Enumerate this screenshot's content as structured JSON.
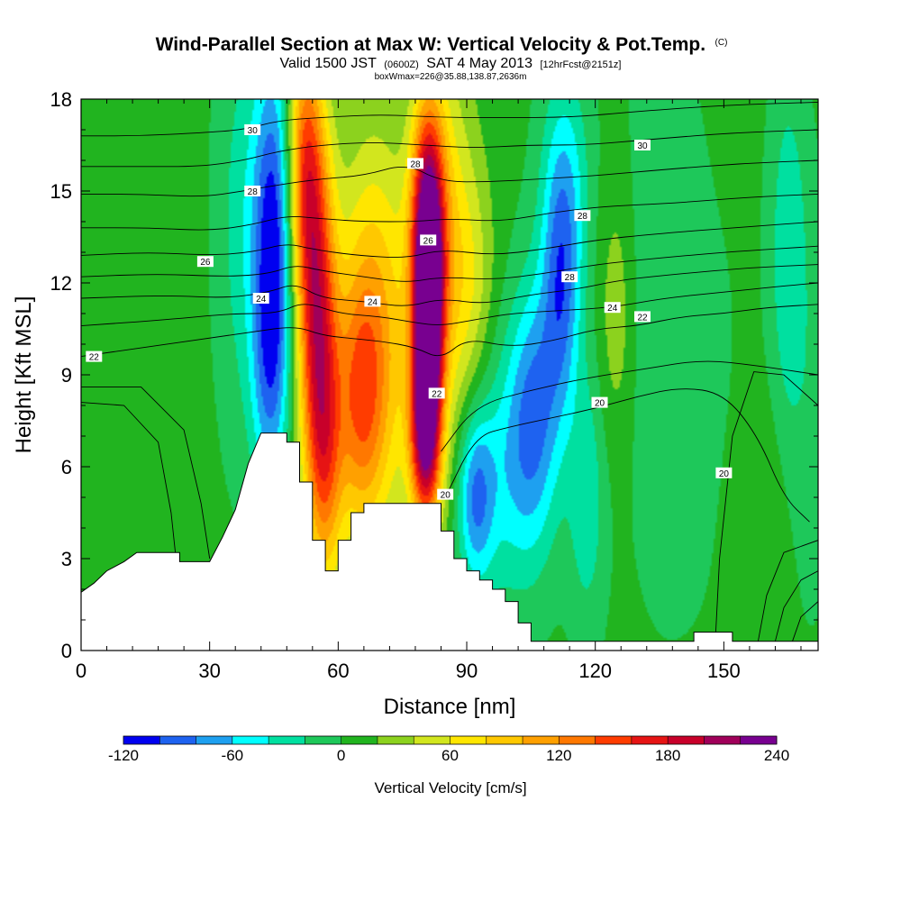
{
  "chart_data": {
    "type": "heatmap",
    "title": "Wind-Parallel Section at Max W: Vertical Velocity & Pot.Temp.",
    "title_suffix": "(C)",
    "subtitle": {
      "valid_prefix": "Valid 1500 JST",
      "utc": "(0600Z)",
      "date": "SAT 4 May 2013",
      "forecast": "[12hrFcst@2151z]"
    },
    "box_text": "boxWmax=226@35.88,138.87,2636m",
    "xlabel": "Distance [nm]",
    "ylabel": "Height [Kft MSL]",
    "xlim": [
      0,
      172
    ],
    "ylim": [
      0,
      18
    ],
    "x_ticks": [
      0,
      30,
      60,
      90,
      120,
      150
    ],
    "y_ticks": [
      0,
      3,
      6,
      9,
      12,
      15,
      18
    ],
    "colorbar": {
      "title": "Vertical Velocity [cm/s]",
      "min": -120,
      "max": 240,
      "step": 20,
      "tick_values": [
        -120,
        -60,
        0,
        60,
        120,
        180,
        240
      ],
      "colors": [
        "#0000f0",
        "#1e62f0",
        "#1ea0f0",
        "#00ffff",
        "#00e0a0",
        "#1ec85a",
        "#21b41f",
        "#8cd21e",
        "#d2e61e",
        "#ffe600",
        "#ffc800",
        "#ffa000",
        "#ff7800",
        "#ff3c00",
        "#e61414",
        "#c8002a",
        "#a0005a",
        "#780090"
      ]
    },
    "terrain_profile": [
      [
        0,
        1.9
      ],
      [
        3,
        2.2
      ],
      [
        6,
        2.6
      ],
      [
        10,
        2.9
      ],
      [
        13,
        3.2
      ],
      [
        23,
        3.2
      ],
      [
        23,
        2.9
      ],
      [
        30,
        2.9
      ],
      [
        33,
        3.7
      ],
      [
        36,
        4.6
      ],
      [
        39,
        6.1
      ],
      [
        42,
        7.1
      ],
      [
        48,
        7.1
      ],
      [
        48,
        6.8
      ],
      [
        51,
        6.8
      ],
      [
        51,
        5.5
      ],
      [
        54,
        5.5
      ],
      [
        54,
        3.6
      ],
      [
        57,
        3.6
      ],
      [
        57,
        2.6
      ],
      [
        60,
        2.6
      ],
      [
        60,
        3.6
      ],
      [
        63,
        3.6
      ],
      [
        63,
        4.5
      ],
      [
        66,
        4.5
      ],
      [
        66,
        4.8
      ],
      [
        84,
        4.8
      ],
      [
        84,
        3.9
      ],
      [
        87,
        3.9
      ],
      [
        87,
        3.0
      ],
      [
        90,
        3.0
      ],
      [
        90,
        2.6
      ],
      [
        93,
        2.6
      ],
      [
        93,
        2.3
      ],
      [
        96,
        2.3
      ],
      [
        96,
        2.0
      ],
      [
        99,
        2.0
      ],
      [
        99,
        1.6
      ],
      [
        102,
        1.6
      ],
      [
        102,
        0.9
      ],
      [
        105,
        0.9
      ],
      [
        105,
        0.3
      ],
      [
        143,
        0.3
      ],
      [
        143,
        0.6
      ],
      [
        152,
        0.6
      ],
      [
        152,
        0.3
      ],
      [
        172,
        0.3
      ]
    ],
    "w_field": [
      {
        "x": 5,
        "y": 10,
        "value": 5,
        "sx": 12,
        "sy": 10
      },
      {
        "x": 25,
        "y": 12,
        "value": 0,
        "sx": 12,
        "sy": 8
      },
      {
        "x": 37,
        "y": 14,
        "value": -30,
        "sx": 4,
        "sy": 5
      },
      {
        "x": 45,
        "y": 14,
        "value": -110,
        "sx": 3.5,
        "sy": 4
      },
      {
        "x": 44,
        "y": 9,
        "value": -60,
        "sx": 3,
        "sy": 3
      },
      {
        "x": 55,
        "y": 11,
        "value": 160,
        "sx": 3.2,
        "sy": 4
      },
      {
        "x": 52,
        "y": 16,
        "value": 120,
        "sx": 3,
        "sy": 3
      },
      {
        "x": 57,
        "y": 6,
        "value": 90,
        "sx": 3,
        "sy": 3
      },
      {
        "x": 65,
        "y": 8,
        "value": 90,
        "sx": 4,
        "sy": 3
      },
      {
        "x": 70,
        "y": 9,
        "value": 60,
        "sx": 6,
        "sy": 4
      },
      {
        "x": 68,
        "y": 13,
        "value": 40,
        "sx": 6,
        "sy": 4
      },
      {
        "x": 81,
        "y": 10.5,
        "value": 230,
        "sx": 2.4,
        "sy": 3.5
      },
      {
        "x": 81,
        "y": 14,
        "value": 140,
        "sx": 3,
        "sy": 3
      },
      {
        "x": 80,
        "y": 7,
        "value": 120,
        "sx": 2.5,
        "sy": 2
      },
      {
        "x": 86,
        "y": 13,
        "value": 50,
        "sx": 4,
        "sy": 5
      },
      {
        "x": 91,
        "y": 12,
        "value": 40,
        "sx": 4,
        "sy": 3
      },
      {
        "x": 92,
        "y": 5,
        "value": -80,
        "sx": 3,
        "sy": 2
      },
      {
        "x": 100,
        "y": 6,
        "value": -50,
        "sx": 6,
        "sy": 3
      },
      {
        "x": 106,
        "y": 8,
        "value": -70,
        "sx": 4,
        "sy": 3
      },
      {
        "x": 112,
        "y": 11.5,
        "value": -70,
        "sx": 3,
        "sy": 3
      },
      {
        "x": 113,
        "y": 15,
        "value": -50,
        "sx": 4,
        "sy": 3
      },
      {
        "x": 118,
        "y": 5,
        "value": -40,
        "sx": 3,
        "sy": 3
      },
      {
        "x": 125,
        "y": 11,
        "value": 30,
        "sx": 3,
        "sy": 3
      },
      {
        "x": 135,
        "y": 12,
        "value": -20,
        "sx": 6,
        "sy": 6
      },
      {
        "x": 144,
        "y": 8,
        "value": -10,
        "sx": 8,
        "sy": 5
      },
      {
        "x": 158,
        "y": 4,
        "value": 15,
        "sx": 5,
        "sy": 3
      },
      {
        "x": 165,
        "y": 13,
        "value": -40,
        "sx": 3,
        "sy": 4
      },
      {
        "x": 170,
        "y": 8,
        "value": -15,
        "sx": 4,
        "sy": 5
      }
    ],
    "theta_contours": [
      {
        "level": 20,
        "points": [
          [
            85,
            5.0
          ],
          [
            92,
            7.0
          ],
          [
            100,
            7.3
          ],
          [
            110,
            7.6
          ],
          [
            120,
            7.9
          ],
          [
            130,
            8.3
          ],
          [
            140,
            8.6
          ],
          [
            150,
            8.4
          ],
          [
            158,
            7.0
          ],
          [
            164,
            5.0
          ],
          [
            170,
            4.2
          ]
        ]
      },
      {
        "level": 21,
        "points": [
          [
            84,
            6.5
          ],
          [
            92,
            8.0
          ],
          [
            105,
            8.5
          ],
          [
            118,
            8.9
          ],
          [
            132,
            9.2
          ],
          [
            145,
            9.5
          ],
          [
            158,
            9.3
          ],
          [
            172,
            9.0
          ]
        ]
      },
      {
        "level": 22,
        "points": [
          [
            0,
            9.6
          ],
          [
            15,
            9.9
          ],
          [
            30,
            10.2
          ],
          [
            40,
            10.4
          ],
          [
            50,
            10.6
          ],
          [
            56,
            10.3
          ],
          [
            62,
            10.2
          ],
          [
            70,
            10.1
          ],
          [
            78,
            9.9
          ],
          [
            84,
            9.5
          ],
          [
            90,
            10.2
          ],
          [
            100,
            9.9
          ],
          [
            110,
            10.1
          ],
          [
            120,
            10.5
          ],
          [
            130,
            10.6
          ],
          [
            140,
            10.9
          ],
          [
            150,
            11.0
          ],
          [
            160,
            11.2
          ],
          [
            172,
            11.3
          ]
        ]
      },
      {
        "level": 23,
        "points": [
          [
            0,
            10.6
          ],
          [
            20,
            10.8
          ],
          [
            35,
            11.0
          ],
          [
            46,
            11.0
          ],
          [
            52,
            11.4
          ],
          [
            60,
            11.0
          ],
          [
            70,
            10.9
          ],
          [
            78,
            10.7
          ],
          [
            84,
            10.6
          ],
          [
            92,
            10.8
          ],
          [
            100,
            11.0
          ],
          [
            112,
            11.1
          ],
          [
            124,
            11.2
          ],
          [
            136,
            11.5
          ],
          [
            150,
            11.7
          ],
          [
            164,
            11.9
          ],
          [
            172,
            12.0
          ]
        ]
      },
      {
        "level": 24,
        "points": [
          [
            0,
            11.5
          ],
          [
            20,
            11.6
          ],
          [
            34,
            11.5
          ],
          [
            44,
            11.7
          ],
          [
            50,
            12.0
          ],
          [
            56,
            11.5
          ],
          [
            66,
            11.4
          ],
          [
            76,
            11.2
          ],
          [
            84,
            11.5
          ],
          [
            94,
            11.3
          ],
          [
            104,
            11.6
          ],
          [
            116,
            11.8
          ],
          [
            126,
            12.1
          ],
          [
            140,
            12.3
          ],
          [
            156,
            12.5
          ],
          [
            172,
            12.6
          ]
        ]
      },
      {
        "level": 25,
        "points": [
          [
            0,
            12.2
          ],
          [
            18,
            12.3
          ],
          [
            34,
            12.2
          ],
          [
            44,
            12.3
          ],
          [
            50,
            12.6
          ],
          [
            56,
            12.4
          ],
          [
            66,
            12.2
          ],
          [
            76,
            12.0
          ],
          [
            84,
            12.2
          ],
          [
            96,
            12.1
          ],
          [
            108,
            12.3
          ],
          [
            120,
            12.6
          ],
          [
            134,
            12.8
          ],
          [
            150,
            13.0
          ],
          [
            172,
            13.2
          ]
        ]
      },
      {
        "level": 26,
        "points": [
          [
            0,
            12.9
          ],
          [
            16,
            13.0
          ],
          [
            30,
            12.9
          ],
          [
            40,
            13.0
          ],
          [
            48,
            13.3
          ],
          [
            54,
            13.1
          ],
          [
            64,
            12.9
          ],
          [
            76,
            12.8
          ],
          [
            84,
            13.1
          ],
          [
            96,
            12.9
          ],
          [
            108,
            13.1
          ],
          [
            120,
            13.4
          ],
          [
            134,
            13.6
          ],
          [
            152,
            13.8
          ],
          [
            172,
            14.0
          ]
        ]
      },
      {
        "level": 27,
        "points": [
          [
            0,
            13.8
          ],
          [
            16,
            13.8
          ],
          [
            30,
            13.7
          ],
          [
            40,
            13.9
          ],
          [
            48,
            14.2
          ],
          [
            56,
            14.1
          ],
          [
            66,
            14.0
          ],
          [
            78,
            14.0
          ],
          [
            86,
            14.1
          ],
          [
            98,
            14.0
          ],
          [
            110,
            14.3
          ],
          [
            122,
            14.5
          ],
          [
            138,
            14.6
          ],
          [
            156,
            14.8
          ],
          [
            172,
            14.9
          ]
        ]
      },
      {
        "level": 28,
        "points": [
          [
            0,
            14.9
          ],
          [
            14,
            14.9
          ],
          [
            28,
            14.8
          ],
          [
            38,
            15.0
          ],
          [
            46,
            15.2
          ],
          [
            56,
            15.4
          ],
          [
            66,
            15.5
          ],
          [
            76,
            15.9
          ],
          [
            84,
            15.3
          ],
          [
            96,
            15.3
          ],
          [
            108,
            15.4
          ],
          [
            120,
            15.5
          ],
          [
            136,
            15.7
          ],
          [
            154,
            15.9
          ],
          [
            172,
            16.0
          ]
        ]
      },
      {
        "level": 29,
        "points": [
          [
            0,
            15.8
          ],
          [
            14,
            15.8
          ],
          [
            28,
            15.8
          ],
          [
            38,
            16.0
          ],
          [
            46,
            16.3
          ],
          [
            56,
            16.5
          ],
          [
            68,
            16.6
          ],
          [
            80,
            16.5
          ],
          [
            92,
            16.4
          ],
          [
            104,
            16.5
          ],
          [
            118,
            16.5
          ],
          [
            134,
            16.7
          ],
          [
            152,
            16.9
          ],
          [
            172,
            17.0
          ]
        ]
      },
      {
        "level": 30,
        "points": [
          [
            0,
            16.8
          ],
          [
            14,
            16.8
          ],
          [
            28,
            16.9
          ],
          [
            38,
            17.0
          ],
          [
            46,
            17.3
          ],
          [
            56,
            17.4
          ],
          [
            70,
            17.5
          ],
          [
            84,
            17.4
          ],
          [
            98,
            17.4
          ],
          [
            114,
            17.4
          ],
          [
            130,
            17.6
          ],
          [
            150,
            17.8
          ],
          [
            172,
            17.9
          ]
        ]
      }
    ],
    "contour_labels": [
      {
        "text": "30",
        "x": 40,
        "y": 17.0
      },
      {
        "text": "28",
        "x": 40,
        "y": 15.0
      },
      {
        "text": "26",
        "x": 29,
        "y": 12.7
      },
      {
        "text": "24",
        "x": 42,
        "y": 11.5
      },
      {
        "text": "22",
        "x": 3,
        "y": 9.6
      },
      {
        "text": "24",
        "x": 68,
        "y": 11.4
      },
      {
        "text": "28",
        "x": 78,
        "y": 15.9
      },
      {
        "text": "26",
        "x": 81,
        "y": 13.4
      },
      {
        "text": "22",
        "x": 83,
        "y": 8.4
      },
      {
        "text": "20",
        "x": 85,
        "y": 5.1
      },
      {
        "text": "30",
        "x": 131,
        "y": 16.5
      },
      {
        "text": "28",
        "x": 117,
        "y": 14.2
      },
      {
        "text": "28",
        "x": 114,
        "y": 12.2
      },
      {
        "text": "24",
        "x": 124,
        "y": 11.2
      },
      {
        "text": "22",
        "x": 131,
        "y": 10.9
      },
      {
        "text": "20",
        "x": 121,
        "y": 8.1
      },
      {
        "text": "20",
        "x": 150,
        "y": 5.8
      }
    ]
  }
}
